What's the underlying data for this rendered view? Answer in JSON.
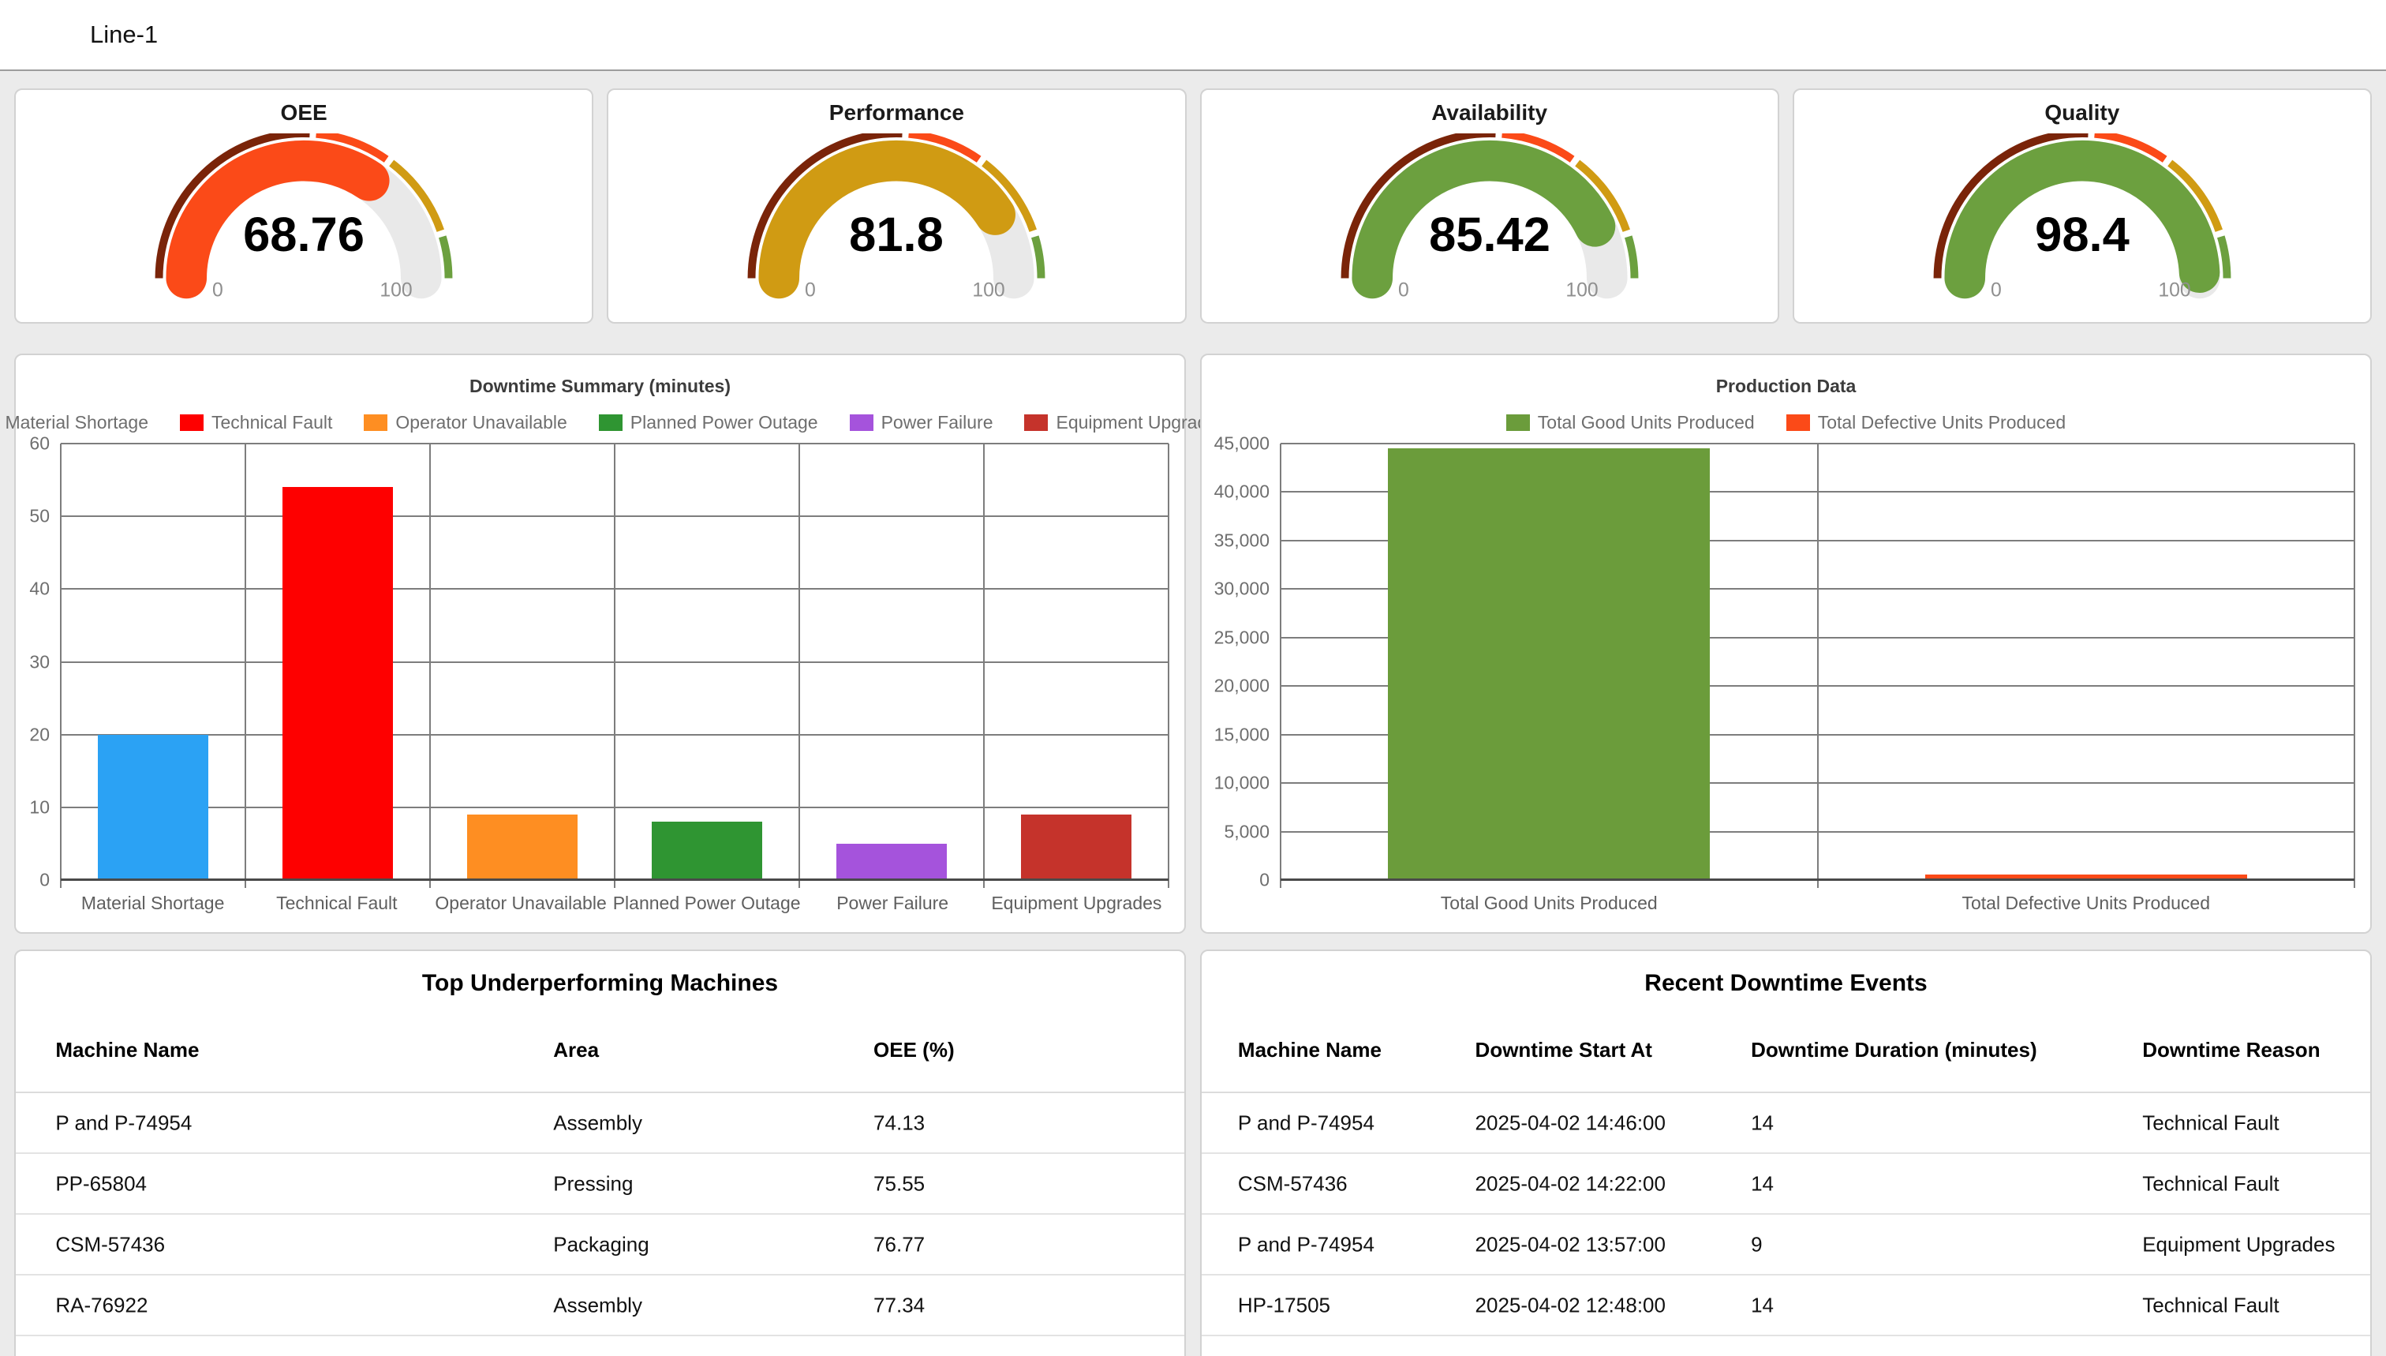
{
  "header": {
    "title": "Line-1"
  },
  "gauges": {
    "min_label": "0",
    "max_label": "100",
    "scale": {
      "track_color": "#E9E9E9",
      "segments": [
        {
          "to": 52,
          "color": "#7A2409"
        },
        {
          "to": 70,
          "color": "#FB4A18"
        },
        {
          "to": 90,
          "color": "#D09B13"
        },
        {
          "to": 100,
          "color": "#6CA03F"
        }
      ]
    },
    "items": [
      {
        "title": "OEE",
        "value": "68.76",
        "percent": 68.76,
        "color": "#FB4A18"
      },
      {
        "title": "Performance",
        "value": "81.8",
        "percent": 81.8,
        "color": "#D09B13"
      },
      {
        "title": "Availability",
        "value": "85.42",
        "percent": 85.42,
        "color": "#6CA03F"
      },
      {
        "title": "Quality",
        "value": "98.4",
        "percent": 98.4,
        "color": "#6CA03F"
      }
    ]
  },
  "chart_data": [
    {
      "type": "bar",
      "title": "Downtime Summary (minutes)",
      "categories": [
        "Material Shortage",
        "Technical Fault",
        "Operator Unavailable",
        "Planned Power Outage",
        "Power Failure",
        "Equipment Upgrades"
      ],
      "values": [
        20,
        54,
        9,
        8,
        5,
        9
      ],
      "colors": [
        "#2BA2F4",
        "#FE0000",
        "#FE8E22",
        "#2F9532",
        "#A553DC",
        "#C5332B"
      ],
      "xlabel": "",
      "ylabel": "",
      "ylim": [
        0,
        60
      ],
      "ytick": 10,
      "grid": true,
      "legend_position": "top",
      "number_format": "plain"
    },
    {
      "type": "bar",
      "title": "Production Data",
      "categories": [
        "Total Good Units Produced",
        "Total Defective Units Produced"
      ],
      "values": [
        44500,
        600
      ],
      "colors": [
        "#6B9C3B",
        "#FB4A18"
      ],
      "xlabel": "",
      "ylabel": "",
      "ylim": [
        0,
        45000
      ],
      "ytick": 5000,
      "grid": true,
      "legend_position": "top",
      "number_format": "comma"
    }
  ],
  "tables": [
    {
      "title": "Top Underperforming Machines",
      "columns": [
        "Machine Name",
        "Area",
        "OEE (%)"
      ],
      "rows": [
        [
          "P and P-74954",
          "Assembly",
          "74.13"
        ],
        [
          "PP-65804",
          "Pressing",
          "75.55"
        ],
        [
          "CSM-57436",
          "Packaging",
          "76.77"
        ],
        [
          "RA-76922",
          "Assembly",
          "77.34"
        ]
      ]
    },
    {
      "title": "Recent Downtime Events",
      "columns": [
        "Machine Name",
        "Downtime Start At",
        "Downtime Duration (minutes)",
        "Downtime Reason"
      ],
      "rows": [
        [
          "P and P-74954",
          "2025-04-02 14:46:00",
          "14",
          "Technical Fault"
        ],
        [
          "CSM-57436",
          "2025-04-02 14:22:00",
          "14",
          "Technical Fault"
        ],
        [
          "P and P-74954",
          "2025-04-02 13:57:00",
          "9",
          "Equipment Upgrades"
        ],
        [
          "HP-17505",
          "2025-04-02 12:48:00",
          "14",
          "Technical Fault"
        ]
      ]
    }
  ]
}
